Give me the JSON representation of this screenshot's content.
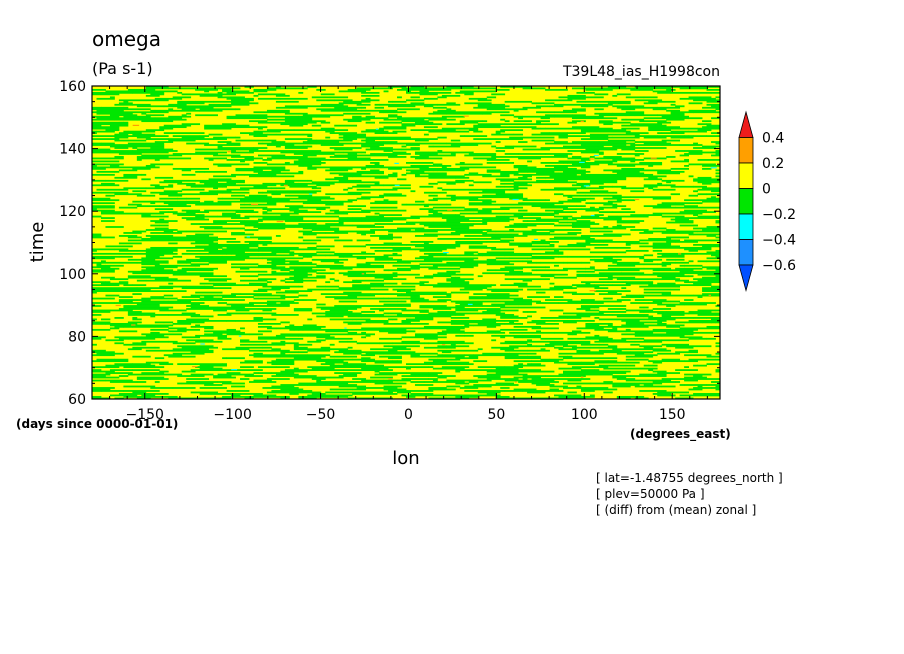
{
  "chart_data": {
    "type": "heatmap",
    "title": "omega",
    "subtitle": "(Pa s-1)",
    "run_label": "T39L48_ias_H1998con",
    "xlabel": "lon",
    "ylabel": "time",
    "x_unit": "(degrees_east)",
    "y_unit": "(days since 0000-01-01)",
    "xlim": [
      -180,
      177.1875
    ],
    "ylim": [
      60,
      160
    ],
    "x_ticks": [
      -150,
      -100,
      -50,
      0,
      50,
      100,
      150
    ],
    "y_ticks": [
      60,
      80,
      100,
      120,
      140,
      160
    ],
    "x_tick_labels": [
      "−150",
      "−100",
      "−50",
      "0",
      "50",
      "100",
      "150"
    ],
    "y_tick_labels": [
      "60",
      "80",
      "100",
      "120",
      "140",
      "160"
    ],
    "colorbar": {
      "levels": [
        0.4,
        0.2,
        0,
        -0.2,
        -0.4,
        -0.6
      ],
      "level_labels": [
        "0.4",
        "0.2",
        "0",
        "−0.2",
        "−0.4",
        "−0.6"
      ],
      "colors": [
        "#ee1c1c",
        "#ff9f00",
        "#ffff00",
        "#00e600",
        "#00ffff",
        "#1e90ff",
        "#0050ff"
      ],
      "extend": "both"
    },
    "dominant_bands": [
      "0 to 0.2 (yellow)",
      "-0.2 to 0 (green)"
    ],
    "notes": [
      "[ lat=-1.48755 degrees_north ]",
      "[ plev=50000 Pa ]",
      "[ (diff) from (mean) zonal ]"
    ]
  }
}
